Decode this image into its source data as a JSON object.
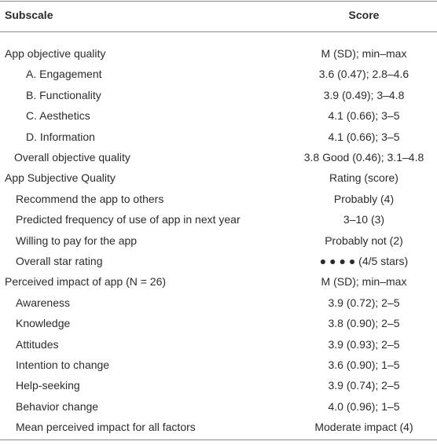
{
  "table": {
    "header": [
      "Subscale",
      "Score"
    ],
    "rows": [
      [
        "App objective quality",
        "M (SD); min–max"
      ],
      [
        "A. Engagement",
        "3.6 (0.47); 2.8–4.6"
      ],
      [
        "B. Functionality",
        "3.9 (0.49); 3–4.8"
      ],
      [
        "C. Aesthetics",
        "4.1 (0.66); 3–5"
      ],
      [
        "D. Information",
        "4.1 (0.66); 3–5"
      ],
      [
        "Overall objective quality",
        "3.8 Good (0.46); 3.1–4.8"
      ],
      [
        "App Subjective Quality",
        "Rating (score)"
      ],
      [
        "Recommend the app to others",
        "Probably (4)"
      ],
      [
        "Predicted frequency of use of app in next year",
        "3–10 (3)"
      ],
      [
        "Willing to pay for the app",
        "Probably not (2)"
      ],
      [
        "Overall star rating",
        "● ● ● ● (4/5 stars)"
      ],
      [
        "Perceived impact of app (N = 26)",
        "M (SD); min–max"
      ],
      [
        "Awareness",
        "3.9 (0.72); 2–5"
      ],
      [
        "Knowledge",
        "3.8 (0.90); 2–5"
      ],
      [
        "Attitudes",
        "3.9 (0.93); 2–5"
      ],
      [
        "Intention to change",
        "3.6 (0.90); 1–5"
      ],
      [
        "Help-seeking",
        "3.9 (0.74); 2–5"
      ],
      [
        "Behavior change",
        "4.0 (0.96); 1–5"
      ],
      [
        "Mean perceived impact for all factors",
        "Moderate impact (4)"
      ]
    ]
  }
}
